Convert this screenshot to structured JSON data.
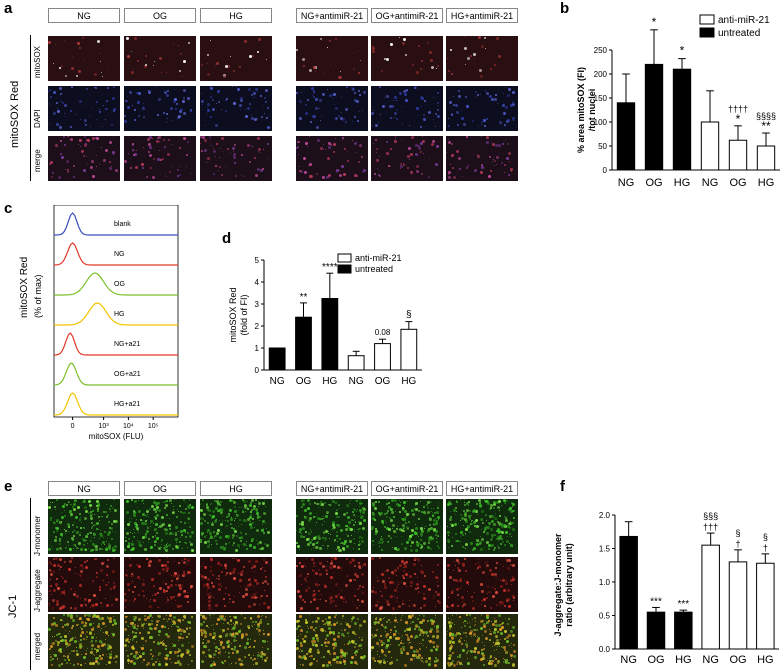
{
  "panels": {
    "a": {
      "label": "a",
      "side_label": "mitoSOX Red",
      "col_headers_left": [
        "NG",
        "OG",
        "HG"
      ],
      "col_headers_right": [
        "NG+antimiR-21",
        "OG+antimiR-21",
        "HG+antimiR-21"
      ],
      "row_labels": [
        "mitoSOX",
        "DAPI",
        "merge"
      ]
    },
    "b": {
      "label": "b",
      "ylabel": "% area mitoSOX (FI)\n/tot nuclei",
      "legend": [
        "anti-miR-21",
        "untreated"
      ],
      "yticks": [
        "0",
        "50",
        "100",
        "150",
        "200",
        "250"
      ],
      "annotations": [
        "*",
        "*",
        "††††",
        "*",
        "§§§§",
        "**"
      ]
    },
    "c": {
      "label": "c",
      "ylabel1": "mitoSOX Red",
      "ylabel2": "(% of max)",
      "xlabel": "mitoSOX (FLU)",
      "tracks": [
        "blank",
        "NG",
        "OG",
        "HG",
        "NG+a21",
        "OG+a21",
        "HG+a21"
      ],
      "track_colors": [
        "#3b4fbf",
        "#e0392b",
        "#7bbf2a",
        "#f2c400",
        "#e0392b",
        "#7bbf2a",
        "#f2c400"
      ],
      "xticks": [
        "0",
        "10³",
        "10⁴",
        "10⁵"
      ]
    },
    "d": {
      "label": "d",
      "ylabel1": "mitoSOX Red",
      "ylabel2": "(fold of FI)",
      "legend": [
        "anti-miR-21",
        "untreated"
      ],
      "yticks": [
        "0",
        "1",
        "2",
        "3",
        "4",
        "5"
      ],
      "annotations": [
        "**",
        "****",
        "0.08",
        "§"
      ]
    },
    "e": {
      "label": "e",
      "side_label": "JC-1",
      "col_headers_left": [
        "NG",
        "OG",
        "HG"
      ],
      "col_headers_right": [
        "NG+antimiR-21",
        "OG+antimiR-21",
        "HG+antimiR-21"
      ],
      "row_labels": [
        "J-monomer",
        "J-aggregate",
        "merged"
      ]
    },
    "f": {
      "label": "f",
      "ylabel": "J-aggregate:J-monomer\nratio (arbitrary unit)",
      "yticks": [
        "0.0",
        "0.5",
        "1.0",
        "1.5",
        "2.0"
      ],
      "annotations": [
        "***",
        "***",
        "§§§",
        "†††",
        "§",
        "†",
        "§",
        "†"
      ]
    }
  },
  "chart_data": [
    {
      "id": "b",
      "type": "bar",
      "categories": [
        "NG",
        "OG",
        "HG",
        "NG",
        "OG",
        "HG"
      ],
      "values": [
        140,
        220,
        210,
        100,
        62,
        50
      ],
      "errors": [
        60,
        72,
        22,
        65,
        30,
        27
      ],
      "fill": [
        "untreated",
        "untreated",
        "untreated",
        "anti-miR-21",
        "anti-miR-21",
        "anti-miR-21"
      ],
      "ylim": [
        0,
        250
      ],
      "ylabel": "% area mitoSOX (FI)\n/tot nuclei"
    },
    {
      "id": "d",
      "type": "bar",
      "categories": [
        "NG",
        "OG",
        "HG",
        "NG",
        "OG",
        "HG"
      ],
      "values": [
        1.0,
        2.4,
        3.25,
        0.65,
        1.2,
        1.85
      ],
      "errors": [
        0,
        0.65,
        1.15,
        0.2,
        0.2,
        0.35
      ],
      "fill": [
        "untreated",
        "untreated",
        "untreated",
        "anti-miR-21",
        "anti-miR-21",
        "anti-miR-21"
      ],
      "ylim": [
        0,
        5
      ],
      "ylabel": "mitoSOX Red\n(fold of FI)"
    },
    {
      "id": "f",
      "type": "bar",
      "categories": [
        "NG",
        "OG",
        "HG",
        "NG",
        "OG",
        "HG"
      ],
      "values": [
        1.68,
        0.55,
        0.55,
        1.55,
        1.3,
        1.28
      ],
      "errors": [
        0.22,
        0.07,
        0.03,
        0.18,
        0.18,
        0.14
      ],
      "fill": [
        "untreated",
        "untreated",
        "untreated",
        "anti-miR-21",
        "anti-miR-21",
        "anti-miR-21"
      ],
      "ylim": [
        0,
        2.0
      ],
      "ylabel": "J-aggregate:J-monomer\nratio (arbitrary unit)"
    }
  ],
  "colors": {
    "untreated": "#000000",
    "anti_mir21": "#ffffff",
    "mitosox_dot": "#ffffff",
    "mito_red_bg": "#2a0f12",
    "dapi_bg": "#0c0d1e",
    "merge_bg": "#1d0f1a",
    "jmono_bg": "#0f2a0c",
    "jagg_bg": "#240b0b",
    "jmerge_bg": "#24280c"
  }
}
